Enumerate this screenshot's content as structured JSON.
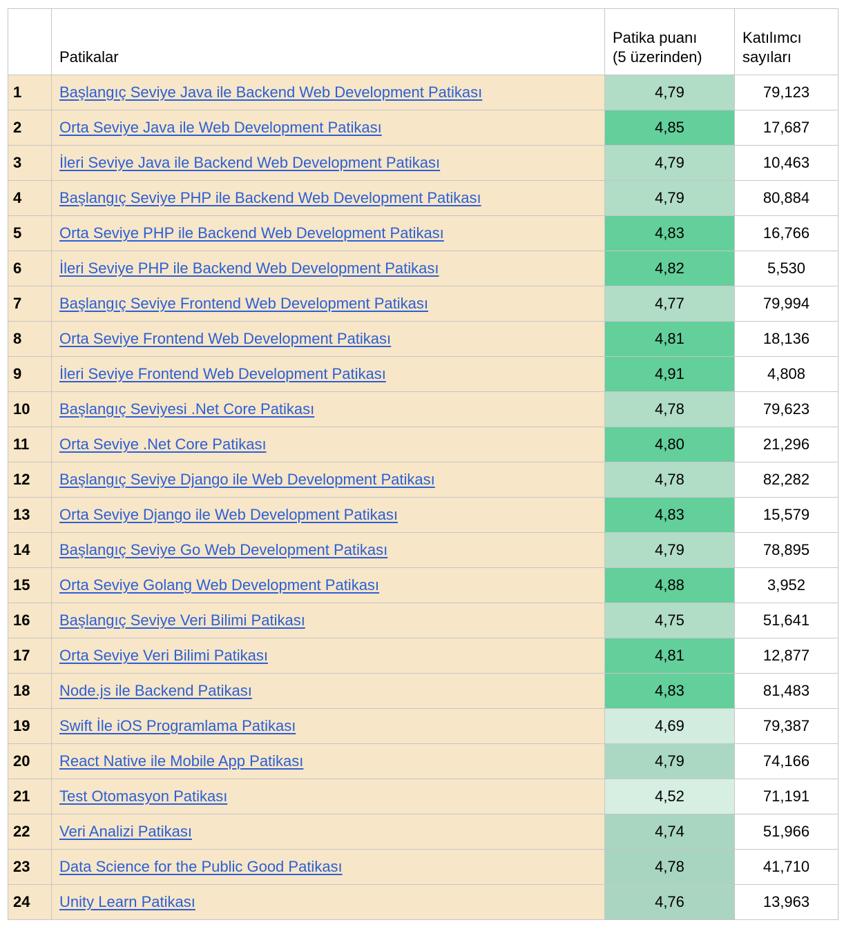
{
  "colors": {
    "row_beige": "#f7e6c7",
    "link_blue": "#2b5fd7",
    "grid_border": "#c6c6c6",
    "score_green_strong": "#63cf9b",
    "score_green_light": "#b1dcc6",
    "header_background": "#ffffff",
    "count_background": "#ffffff"
  },
  "table": {
    "headers": {
      "rank": "",
      "patikalar": "Patikalar",
      "score_line1": "Patika puanı",
      "score_line2": "(5 üzerinden)",
      "participants_line1": "Katılımcı",
      "participants_line2": "sayıları"
    },
    "rows": [
      {
        "rank": "1",
        "title": "Başlangıç Seviye Java ile Backend Web Development Patikası",
        "score": "4,79",
        "participants": "79,123",
        "score_bg": "#b1dcc6"
      },
      {
        "rank": "2",
        "title": "Orta Seviye Java ile Web Development Patikası",
        "score": "4,85",
        "participants": "17,687",
        "score_bg": "#63cf9b"
      },
      {
        "rank": "3",
        "title": "İleri Seviye Java ile Backend Web Development Patikası",
        "score": "4,79",
        "participants": "10,463",
        "score_bg": "#b1dcc6"
      },
      {
        "rank": "4",
        "title": "Başlangıç Seviye PHP ile Backend Web Development Patikası",
        "score": "4,79",
        "participants": "80,884",
        "score_bg": "#b1dcc6"
      },
      {
        "rank": "5",
        "title": "Orta Seviye PHP ile Backend Web Development Patikası",
        "score": "4,83",
        "participants": "16,766",
        "score_bg": "#63cf9b"
      },
      {
        "rank": "6",
        "title": "İleri Seviye PHP ile Backend Web Development Patikası",
        "score": "4,82",
        "participants": "5,530",
        "score_bg": "#63cf9b"
      },
      {
        "rank": "7",
        "title": "Başlangıç Seviye Frontend Web Development Patikası",
        "score": "4,77",
        "participants": "79,994",
        "score_bg": "#b1dcc6"
      },
      {
        "rank": "8",
        "title": "Orta Seviye Frontend Web Development Patikası",
        "score": "4,81",
        "participants": "18,136",
        "score_bg": "#63cf9b"
      },
      {
        "rank": "9",
        "title": "İleri Seviye Frontend Web Development Patikası",
        "score": "4,91",
        "participants": "4,808",
        "score_bg": "#63cf9b"
      },
      {
        "rank": "10",
        "title": "Başlangıç Seviyesi .Net Core Patikası",
        "score": "4,78",
        "participants": "79,623",
        "score_bg": "#b1dcc6"
      },
      {
        "rank": "11",
        "title": "Orta Seviye .Net Core Patikası",
        "score": "4,80",
        "participants": "21,296",
        "score_bg": "#63cf9b"
      },
      {
        "rank": "12",
        "title": "Başlangıç Seviye Django ile Web Development Patikası",
        "score": "4,78",
        "participants": "82,282",
        "score_bg": "#b1dcc6"
      },
      {
        "rank": "13",
        "title": "Orta Seviye Django ile Web Development Patikası",
        "score": "4,83",
        "participants": "15,579",
        "score_bg": "#63cf9b"
      },
      {
        "rank": "14",
        "title": "Başlangıç Seviye Go Web Development Patikası",
        "score": "4,79",
        "participants": "78,895",
        "score_bg": "#b1dcc6"
      },
      {
        "rank": "15",
        "title": "Orta Seviye Golang Web Development Patikası",
        "score": "4,88",
        "participants": "3,952",
        "score_bg": "#63cf9b"
      },
      {
        "rank": "16",
        "title": "Başlangıç Seviye Veri Bilimi Patikası",
        "score": "4,75",
        "participants": "51,641",
        "score_bg": "#b1dcc6"
      },
      {
        "rank": "17",
        "title": "Orta Seviye Veri Bilimi Patikası",
        "score": "4,81",
        "participants": "12,877",
        "score_bg": "#63cf9b"
      },
      {
        "rank": "18",
        "title": "Node.js ile Backend Patikası",
        "score": "4,83",
        "participants": "81,483",
        "score_bg": "#63cf9b"
      },
      {
        "rank": "19",
        "title": "Swift İle iOS Programlama Patikası",
        "score": "4,69",
        "participants": "79,387",
        "score_bg": "#d2ecdf"
      },
      {
        "rank": "20",
        "title": "React Native ile Mobile App Patikası",
        "score": "4,79",
        "participants": "74,166",
        "score_bg": "#abd8c2"
      },
      {
        "rank": "21",
        "title": "Test Otomasyon Patikası",
        "score": "4,52",
        "participants": "71,191",
        "score_bg": "#d7eee3"
      },
      {
        "rank": "22",
        "title": "Veri Analizi Patikası",
        "score": "4,74",
        "participants": "51,966",
        "score_bg": "#a9d6c0"
      },
      {
        "rank": "23",
        "title": "Data Science for the Public Good Patikası",
        "score": "4,78",
        "participants": "41,710",
        "score_bg": "#a8d5c0"
      },
      {
        "rank": "24",
        "title": "Unity Learn Patikası",
        "score": "4,76",
        "participants": "13,963",
        "score_bg": "#aad6c1"
      }
    ]
  }
}
